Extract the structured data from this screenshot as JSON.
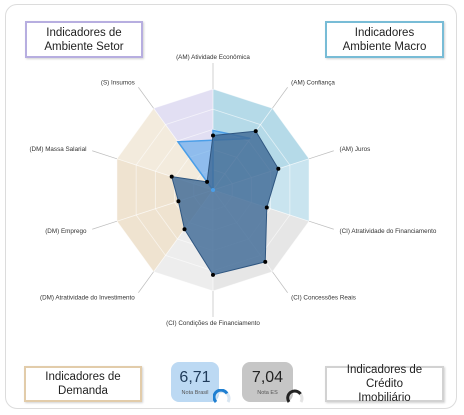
{
  "boxes": {
    "setor": "Indicadores de\nAmbiente Setor",
    "macro": "Indicadores\nAmbiente Macro",
    "demanda": "Indicadores de\nDemanda",
    "credito": "Indicadores de Crédito\nImobiliário"
  },
  "cards": {
    "brasil": {
      "value": "6,71",
      "label": "Nota Brasil"
    },
    "es": {
      "value": "7,04",
      "label": "Nota ES"
    }
  },
  "colors": {
    "setor": "#b7aee0",
    "macro": "#78bcd6",
    "demanda": "#e2ccaa",
    "credito": "#d2d2d2",
    "series": "#3f6a96",
    "highlight": "#4a9ee8",
    "card_brasil": "#bcd9f3",
    "card_es": "#c6c6c6"
  },
  "chart_data": {
    "type": "radar",
    "axes": [
      "(AM) Atividade Econômica",
      "(AM) Confiança",
      "(AM) Juros",
      "(CI) Atratividade do Financiamento",
      "(CI) Concessões Reais",
      "(CI) Condições de Financiamento",
      "(DM) Atratividade do Investimento",
      "(DM) Emprego",
      "(DM) Massa Salarial",
      "(S) Insumos"
    ],
    "axis_groups": [
      "macro",
      "macro",
      "macro",
      "credito",
      "credito",
      "credito",
      "demanda",
      "demanda",
      "demanda",
      "setor"
    ],
    "scale_max": 10,
    "series": [
      {
        "values": [
          5.4,
          7.2,
          6.8,
          5.6,
          8.8,
          8.4,
          4.8,
          3.6,
          4.3,
          1.0
        ]
      }
    ],
    "highlight": {
      "axes": [
        0,
        1,
        9
      ],
      "values": [
        5.9,
        6.3,
        5.9
      ]
    }
  }
}
